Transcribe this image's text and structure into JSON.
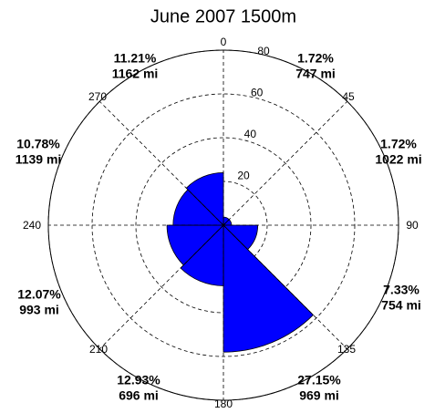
{
  "chart_data": {
    "type": "rose",
    "title": "June 2007 1500m",
    "categories": [
      "0",
      "45",
      "90",
      "135",
      "180",
      "210",
      "240",
      "270"
    ],
    "values": [
      3.7,
      3.7,
      15.7,
      58,
      27.7,
      25.8,
      23,
      24
    ],
    "sector_labels": [
      {
        "percent": "1.72%",
        "distance": "747 mi"
      },
      {
        "percent": "1.72%",
        "distance": "1022 mi"
      },
      {
        "percent": "7.33%",
        "distance": "754 mi"
      },
      {
        "percent": "27.15%",
        "distance": "969 mi"
      },
      {
        "percent": "12.93%",
        "distance": "696 mi"
      },
      {
        "percent": "12.07%",
        "distance": "993 mi"
      },
      {
        "percent": "10.78%",
        "distance": "1139 mi"
      },
      {
        "percent": "11.21%",
        "distance": "1162 mi"
      }
    ],
    "color": "#0000ff",
    "rlim": [
      0,
      80
    ],
    "rticks": [
      20,
      40,
      60,
      80
    ],
    "grid": true
  }
}
